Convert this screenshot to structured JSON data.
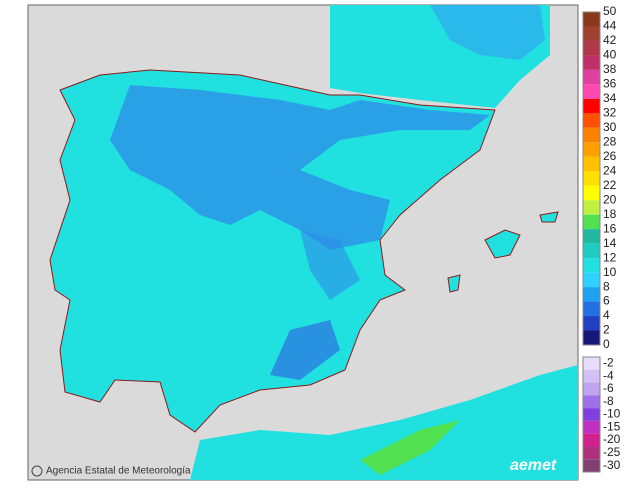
{
  "colorbar": {
    "labels": [
      50,
      44,
      42,
      40,
      38,
      36,
      34,
      32,
      30,
      28,
      26,
      24,
      22,
      20,
      18,
      16,
      14,
      12,
      10,
      8,
      6,
      4,
      2,
      0
    ],
    "colors": [
      "#8a3a18",
      "#a04030",
      "#b03848",
      "#c03068",
      "#e040a0",
      "#ff48b0",
      "#ff0000",
      "#ff5000",
      "#ff8000",
      "#ffa000",
      "#ffc000",
      "#ffe000",
      "#ffff00",
      "#c0f040",
      "#50e050",
      "#20b8a0",
      "#20ccc0",
      "#20e0e0",
      "#30d0ff",
      "#20a0f0",
      "#2070e0",
      "#2040c0",
      "#18187a"
    ]
  },
  "colorbar_negative": {
    "labels": [
      -2,
      -4,
      -6,
      -8,
      -10,
      -15,
      -20,
      -25,
      -30
    ],
    "colors": [
      "#e8dcfa",
      "#d4c0f4",
      "#c0a4f0",
      "#a070e8",
      "#8040e0",
      "#c030c0",
      "#d02090",
      "#b03080",
      "#804070"
    ]
  },
  "footer": {
    "agency": "Agencia Estatal de Meteorología",
    "logo": "aemet"
  }
}
